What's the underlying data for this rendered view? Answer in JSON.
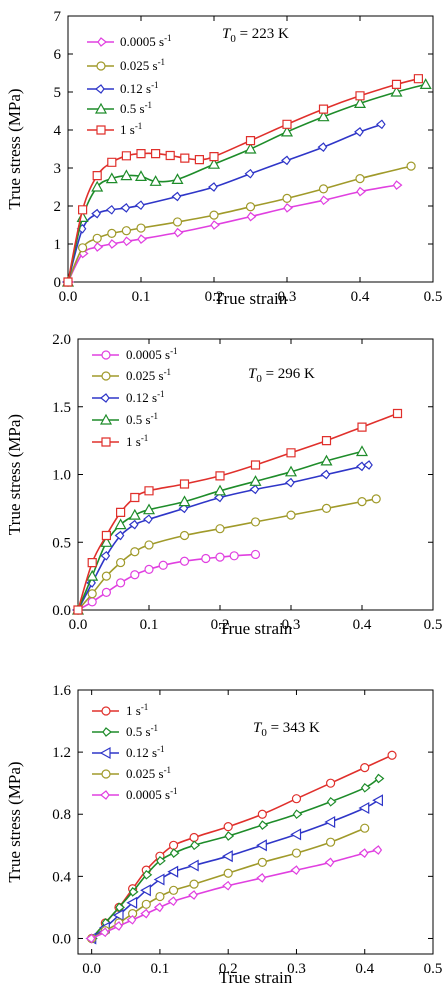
{
  "chart_data": [
    {
      "type": "line",
      "annotation": "T0 = 223 K",
      "annotation_parts": {
        "var": "T",
        "sub": "0",
        "rest": " = 223 K"
      },
      "xlabel": "True strain",
      "ylabel": "True stress (MPa)",
      "xlim": [
        0,
        0.5
      ],
      "ylim": [
        0,
        7
      ],
      "xticks": [
        "0.0",
        "0.1",
        "0.2",
        "0.3",
        "0.4",
        "0.5"
      ],
      "yticks": [
        "0",
        "1",
        "2",
        "3",
        "4",
        "5",
        "6",
        "7"
      ],
      "legend_position": "top-left",
      "series": [
        {
          "name": "0.0005 s-1",
          "rate": "0.0005",
          "color": "#e040e0",
          "marker": "diamond-right",
          "x": [
            0,
            0.02,
            0.04,
            0.06,
            0.08,
            0.1,
            0.15,
            0.2,
            0.25,
            0.3,
            0.35,
            0.4,
            0.45
          ],
          "y": [
            0,
            0.75,
            0.92,
            1.0,
            1.07,
            1.13,
            1.3,
            1.5,
            1.72,
            1.95,
            2.15,
            2.38,
            2.55
          ]
        },
        {
          "name": "0.025 s-1",
          "rate": "0.025",
          "color": "#a09a2a",
          "marker": "circle",
          "x": [
            0,
            0.02,
            0.04,
            0.06,
            0.08,
            0.1,
            0.15,
            0.2,
            0.25,
            0.3,
            0.35,
            0.4,
            0.47
          ],
          "y": [
            0,
            0.9,
            1.15,
            1.28,
            1.35,
            1.42,
            1.58,
            1.76,
            1.98,
            2.2,
            2.45,
            2.72,
            3.05
          ]
        },
        {
          "name": "0.12 s-1",
          "rate": "0.12",
          "color": "#2f36c8",
          "marker": "diamond-left",
          "x": [
            0,
            0.02,
            0.04,
            0.06,
            0.08,
            0.1,
            0.15,
            0.2,
            0.25,
            0.3,
            0.35,
            0.4,
            0.43
          ],
          "y": [
            0,
            1.4,
            1.8,
            1.9,
            1.95,
            2.02,
            2.25,
            2.5,
            2.85,
            3.2,
            3.55,
            3.95,
            4.15
          ]
        },
        {
          "name": "0.5 s-1",
          "rate": "0.5",
          "color": "#1e8c2a",
          "marker": "triangle",
          "x": [
            0,
            0.02,
            0.04,
            0.06,
            0.08,
            0.1,
            0.12,
            0.15,
            0.2,
            0.25,
            0.3,
            0.35,
            0.4,
            0.45,
            0.49
          ],
          "y": [
            0,
            1.7,
            2.5,
            2.72,
            2.8,
            2.78,
            2.65,
            2.7,
            3.1,
            3.5,
            3.95,
            4.35,
            4.7,
            5.0,
            5.2
          ]
        },
        {
          "name": "1 s-1",
          "rate": "1",
          "color": "#e0302c",
          "marker": "square",
          "x": [
            0,
            0.02,
            0.04,
            0.06,
            0.08,
            0.1,
            0.12,
            0.14,
            0.16,
            0.18,
            0.2,
            0.25,
            0.3,
            0.35,
            0.4,
            0.45,
            0.48
          ],
          "y": [
            0,
            1.9,
            2.8,
            3.15,
            3.32,
            3.38,
            3.38,
            3.33,
            3.26,
            3.22,
            3.3,
            3.72,
            4.15,
            4.55,
            4.9,
            5.2,
            5.35
          ]
        }
      ]
    },
    {
      "type": "line",
      "annotation": "T0 = 296 K",
      "annotation_parts": {
        "var": "T",
        "sub": "0",
        "rest": " = 296 K"
      },
      "xlabel": "True strain",
      "ylabel": "True stress (MPa)",
      "xlim": [
        0,
        0.5
      ],
      "ylim": [
        0,
        2.0
      ],
      "xticks": [
        "0.0",
        "0.1",
        "0.2",
        "0.3",
        "0.4",
        "0.5"
      ],
      "yticks": [
        "0.0",
        "0.5",
        "1.0",
        "1.5",
        "2.0"
      ],
      "legend_position": "top-left",
      "series": [
        {
          "name": "0.0005 s-1",
          "rate": "0.0005",
          "color": "#e040e0",
          "marker": "circle",
          "x": [
            0,
            0.02,
            0.04,
            0.06,
            0.08,
            0.1,
            0.12,
            0.15,
            0.18,
            0.2,
            0.22,
            0.25
          ],
          "y": [
            0,
            0.06,
            0.13,
            0.2,
            0.26,
            0.3,
            0.33,
            0.36,
            0.38,
            0.39,
            0.4,
            0.41
          ]
        },
        {
          "name": "0.025 s-1",
          "rate": "0.025",
          "color": "#a09a2a",
          "marker": "circle",
          "x": [
            0,
            0.02,
            0.04,
            0.06,
            0.08,
            0.1,
            0.15,
            0.2,
            0.25,
            0.3,
            0.35,
            0.4,
            0.42
          ],
          "y": [
            0,
            0.12,
            0.25,
            0.35,
            0.43,
            0.48,
            0.55,
            0.6,
            0.65,
            0.7,
            0.75,
            0.8,
            0.82
          ]
        },
        {
          "name": "0.12 s-1",
          "rate": "0.12",
          "color": "#2f36c8",
          "marker": "diamond-left",
          "x": [
            0,
            0.02,
            0.04,
            0.06,
            0.08,
            0.1,
            0.15,
            0.2,
            0.25,
            0.3,
            0.35,
            0.4,
            0.41
          ],
          "y": [
            0,
            0.2,
            0.4,
            0.55,
            0.63,
            0.67,
            0.75,
            0.83,
            0.89,
            0.94,
            1.0,
            1.06,
            1.07
          ]
        },
        {
          "name": "0.5 s-1",
          "rate": "0.5",
          "color": "#1e8c2a",
          "marker": "triangle",
          "x": [
            0,
            0.02,
            0.04,
            0.06,
            0.08,
            0.1,
            0.15,
            0.2,
            0.25,
            0.3,
            0.35,
            0.4
          ],
          "y": [
            0,
            0.25,
            0.5,
            0.63,
            0.7,
            0.74,
            0.8,
            0.88,
            0.95,
            1.02,
            1.1,
            1.17
          ]
        },
        {
          "name": "1 s-1",
          "rate": "1",
          "color": "#e0302c",
          "marker": "square",
          "x": [
            0,
            0.02,
            0.04,
            0.06,
            0.08,
            0.1,
            0.15,
            0.2,
            0.25,
            0.3,
            0.35,
            0.4,
            0.45
          ],
          "y": [
            0,
            0.35,
            0.55,
            0.72,
            0.83,
            0.88,
            0.93,
            0.99,
            1.07,
            1.16,
            1.25,
            1.35,
            1.45
          ]
        }
      ]
    },
    {
      "type": "line",
      "annotation": "T0 = 343 K",
      "annotation_parts": {
        "var": "T",
        "sub": "0",
        "rest": " = 343 K"
      },
      "xlabel": "True strain",
      "ylabel": "True stress (MPa)",
      "xlim": [
        -0.02,
        0.5
      ],
      "ylim": [
        -0.1,
        1.6
      ],
      "xticks": [
        "0.0",
        "0.1",
        "0.2",
        "0.3",
        "0.4",
        "0.5"
      ],
      "yticks": [
        "0.0",
        "0.4",
        "0.8",
        "1.2",
        "1.6"
      ],
      "legend_position": "top-left",
      "series": [
        {
          "name": "1 s-1",
          "rate": "1",
          "color": "#e0302c",
          "marker": "circle",
          "x": [
            0,
            0.02,
            0.04,
            0.06,
            0.08,
            0.1,
            0.12,
            0.15,
            0.2,
            0.25,
            0.3,
            0.35,
            0.4,
            0.44
          ],
          "y": [
            0,
            0.1,
            0.2,
            0.32,
            0.44,
            0.53,
            0.6,
            0.65,
            0.72,
            0.8,
            0.9,
            1.0,
            1.1,
            1.18
          ]
        },
        {
          "name": "0.5 s-1",
          "rate": "0.5",
          "color": "#1e8c2a",
          "marker": "diamond-right",
          "x": [
            0,
            0.02,
            0.04,
            0.06,
            0.08,
            0.1,
            0.12,
            0.15,
            0.2,
            0.25,
            0.3,
            0.35,
            0.4,
            0.42
          ],
          "y": [
            0,
            0.1,
            0.2,
            0.3,
            0.41,
            0.5,
            0.55,
            0.6,
            0.66,
            0.73,
            0.8,
            0.88,
            0.97,
            1.03
          ]
        },
        {
          "name": "0.12 s-1",
          "rate": "0.12",
          "color": "#2f36c8",
          "marker": "triangle-left",
          "x": [
            0,
            0.02,
            0.04,
            0.06,
            0.08,
            0.1,
            0.12,
            0.15,
            0.2,
            0.25,
            0.3,
            0.35,
            0.4,
            0.42
          ],
          "y": [
            0,
            0.07,
            0.15,
            0.23,
            0.31,
            0.38,
            0.43,
            0.47,
            0.53,
            0.6,
            0.67,
            0.75,
            0.84,
            0.89
          ]
        },
        {
          "name": "0.025 s-1",
          "rate": "0.025",
          "color": "#a09a2a",
          "marker": "circle",
          "x": [
            0,
            0.02,
            0.04,
            0.06,
            0.08,
            0.1,
            0.12,
            0.15,
            0.2,
            0.25,
            0.3,
            0.35,
            0.4
          ],
          "y": [
            0,
            0.05,
            0.1,
            0.16,
            0.22,
            0.27,
            0.31,
            0.35,
            0.42,
            0.49,
            0.55,
            0.62,
            0.71
          ]
        },
        {
          "name": "0.0005 s-1",
          "rate": "0.0005",
          "color": "#e040e0",
          "marker": "diamond-left",
          "x": [
            0,
            0.02,
            0.04,
            0.06,
            0.08,
            0.1,
            0.12,
            0.15,
            0.2,
            0.25,
            0.3,
            0.35,
            0.4,
            0.42
          ],
          "y": [
            0,
            0.04,
            0.08,
            0.12,
            0.16,
            0.2,
            0.24,
            0.28,
            0.34,
            0.39,
            0.44,
            0.49,
            0.55,
            0.57
          ]
        }
      ]
    }
  ]
}
